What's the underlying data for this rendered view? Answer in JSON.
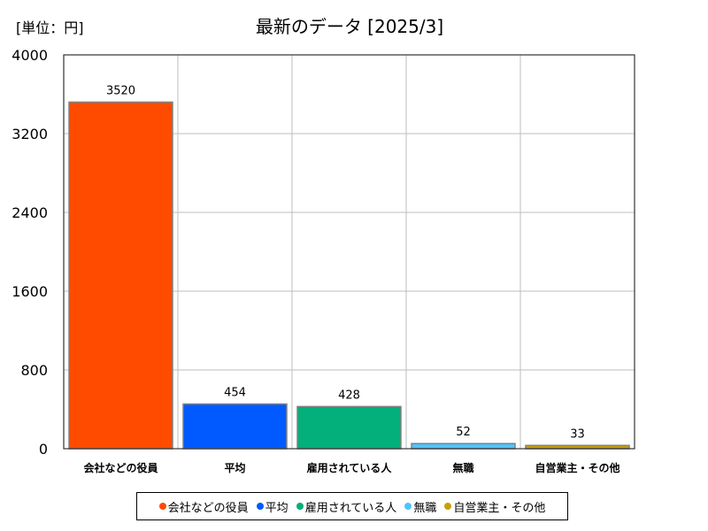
{
  "chart_data": {
    "type": "bar",
    "title": "最新のデータ [2025/3]",
    "unit_label": "[単位：円]",
    "categories": [
      "会社などの役員",
      "平均",
      "雇用されている人",
      "無職",
      "自営業主・その他"
    ],
    "values": [
      3520,
      454,
      428,
      52,
      33
    ],
    "data_labels": [
      "3520",
      "454",
      "428",
      "52",
      "33"
    ],
    "colors": [
      "#ff4b00",
      "#005aff",
      "#03af7a",
      "#4dc4ff",
      "#c9a000"
    ],
    "ylim": [
      0,
      4000
    ],
    "yticks": [
      0,
      800,
      1600,
      2400,
      3200,
      4000
    ],
    "ytick_labels": [
      "0",
      "800",
      "1600",
      "2400",
      "3200",
      "4000"
    ],
    "grid": true,
    "legend_position": "bottom",
    "xlabel": "",
    "ylabel": ""
  }
}
